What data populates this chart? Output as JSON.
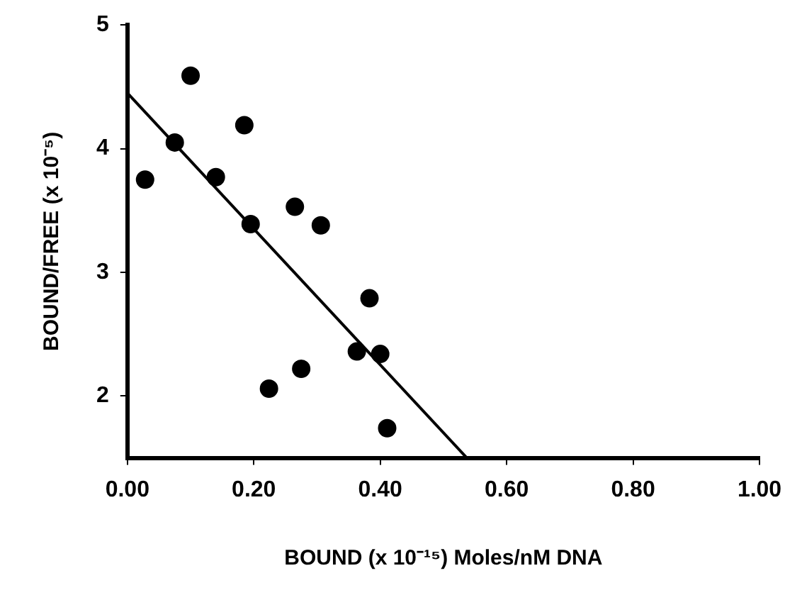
{
  "chart_data": {
    "type": "scatter",
    "xlabel": "BOUND (x 10⁻¹⁵) Moles/nM DNA",
    "ylabel": "BOUND/FREE (x 10⁻⁵)",
    "xlim": [
      0,
      1
    ],
    "ylim": [
      1.5,
      5
    ],
    "xticks": [
      {
        "value": 0,
        "label": "0.00"
      },
      {
        "value": 0.2,
        "label": "0.20"
      },
      {
        "value": 0.4,
        "label": "0.40"
      },
      {
        "value": 0.6,
        "label": "0.60"
      },
      {
        "value": 0.8,
        "label": "0.80"
      },
      {
        "value": 1,
        "label": "1.00"
      }
    ],
    "yticks": [
      2,
      3,
      4,
      5
    ],
    "marker": "circle",
    "series": [
      {
        "type": "scatter",
        "color": "#000000",
        "x": [
          0.028,
          0.075,
          0.1,
          0.14,
          0.185,
          0.195,
          0.224,
          0.265,
          0.275,
          0.306,
          0.363,
          0.383,
          0.4,
          0.411
        ],
        "values": [
          3.75,
          4.05,
          4.59,
          3.77,
          4.19,
          3.39,
          2.06,
          3.53,
          2.22,
          3.38,
          2.36,
          2.79,
          2.34,
          1.74
        ]
      },
      {
        "type": "line",
        "color": "#000000",
        "x": [
          0,
          0.537
        ],
        "values": [
          4.45,
          1.5
        ],
        "marker": "none",
        "line_style": "solid"
      }
    ]
  }
}
